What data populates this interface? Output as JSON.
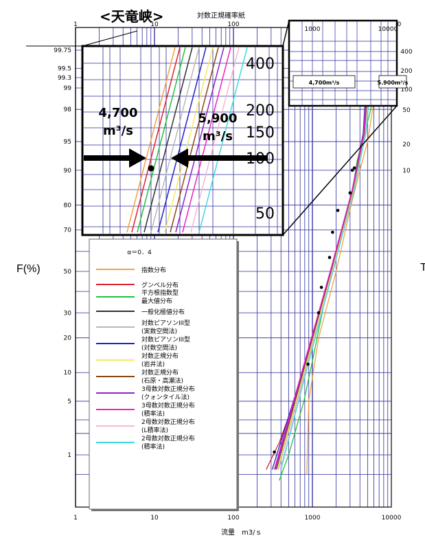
{
  "title": "<天竜峡>",
  "paper_label": "対数正規確率紙",
  "ylabel": "F(%)",
  "xlabel": "流量　m3/ｓ",
  "right_cut_char": "T",
  "chart_data": {
    "type": "line",
    "x_scale": "log",
    "xlim": [
      1,
      10000
    ],
    "x_ticks": [
      "1",
      "10",
      "100",
      "1000",
      "10000"
    ],
    "y_scale": "lognormal-probability",
    "ylim": [
      0.5,
      99.8
    ],
    "y_ticks": [
      "1",
      "5",
      "10",
      "20",
      "30",
      "50",
      "70",
      "80",
      "90",
      "95",
      "98",
      "99",
      "99.3",
      "99.5",
      "99.75"
    ],
    "legend_title": "α＝0．4",
    "series": [
      {
        "name": "指数分布",
        "color": "#f5a040",
        "points": [
          [
            850,
            0.5
          ],
          [
            900,
            5
          ],
          [
            1200,
            20
          ],
          [
            2000,
            50
          ],
          [
            3100,
            80
          ],
          [
            4000,
            90
          ],
          [
            5000,
            95
          ],
          [
            6400,
            99
          ],
          [
            7000,
            99.75
          ]
        ]
      },
      {
        "name": "グンベル分布",
        "color": "#e0202e",
        "points": [
          [
            260,
            0.6
          ],
          [
            380,
            1.5
          ],
          [
            800,
            10
          ],
          [
            1350,
            35
          ],
          [
            2100,
            60
          ],
          [
            3300,
            85
          ],
          [
            4300,
            95
          ],
          [
            5300,
            99
          ],
          [
            6000,
            99.75
          ]
        ]
      },
      {
        "name": "平方根指数型 最大値分布",
        "color": "#22c040",
        "points": [
          [
            380,
            0.4
          ],
          [
            500,
            1
          ],
          [
            780,
            5
          ],
          [
            1050,
            15
          ],
          [
            1700,
            50
          ],
          [
            3000,
            80
          ],
          [
            3700,
            92
          ],
          [
            5500,
            98
          ],
          [
            6500,
            99.75
          ]
        ]
      },
      {
        "name": "一般化極値分布",
        "color": "#303030",
        "points": [
          [
            330,
            0.6
          ],
          [
            700,
            8
          ],
          [
            1700,
            50
          ],
          [
            3200,
            85
          ],
          [
            4500,
            96
          ],
          [
            5300,
            99.75
          ]
        ]
      },
      {
        "name": "対数ピアソンIII型 (実数空間法)",
        "color": "#b8b8b8",
        "points": [
          [
            370,
            0.6
          ],
          [
            800,
            10
          ],
          [
            1800,
            50
          ],
          [
            3300,
            85
          ],
          [
            4800,
            96
          ],
          [
            5900,
            99.75
          ]
        ]
      },
      {
        "name": "対数ピアソンIII型 (対数空間法)",
        "color": "#2020c0",
        "points": [
          [
            310,
            0.6
          ],
          [
            680,
            8
          ],
          [
            1600,
            45
          ],
          [
            3200,
            85
          ],
          [
            4400,
            96
          ],
          [
            5100,
            99.75
          ]
        ]
      },
      {
        "name": "対数正規分布 (岩井法)",
        "color": "#f6e860",
        "points": [
          [
            360,
            0.6
          ],
          [
            780,
            10
          ],
          [
            1750,
            50
          ],
          [
            3300,
            85
          ],
          [
            4600,
            96
          ],
          [
            5600,
            99.75
          ]
        ]
      },
      {
        "name": "対数正規分布 (石原・高瀬法)",
        "color": "#8b4513",
        "points": [
          [
            350,
            0.6
          ],
          [
            760,
            10
          ],
          [
            1720,
            50
          ],
          [
            3250,
            85
          ],
          [
            4550,
            96
          ],
          [
            5500,
            99.75
          ]
        ]
      },
      {
        "name": "3母数対数正規分布 (クォンタイル法)",
        "color": "#9020c8",
        "points": [
          [
            340,
            0.6
          ],
          [
            740,
            10
          ],
          [
            1700,
            50
          ],
          [
            3200,
            85
          ],
          [
            4500,
            96
          ],
          [
            5400,
            99.75
          ]
        ]
      },
      {
        "name": "3母数対数正規分布 (積率法)",
        "color": "#f020c0",
        "points": [
          [
            330,
            0.6
          ],
          [
            730,
            10
          ],
          [
            1680,
            50
          ],
          [
            3200,
            85
          ],
          [
            4450,
            96
          ],
          [
            5300,
            99.75
          ]
        ]
      },
      {
        "name": "2母数対数正規分布 (L積率法)",
        "color": "#f4b8d8",
        "points": [
          [
            390,
            0.6
          ],
          [
            820,
            10
          ],
          [
            1800,
            50
          ],
          [
            3350,
            85
          ],
          [
            4700,
            96
          ],
          [
            5800,
            99.75
          ]
        ]
      },
      {
        "name": "2母数対数正規分布 (積率法)",
        "color": "#40d8e0",
        "points": [
          [
            400,
            0.6
          ],
          [
            830,
            10
          ],
          [
            1820,
            50
          ],
          [
            3400,
            85
          ],
          [
            4750,
            96
          ],
          [
            5900,
            99.75
          ]
        ]
      }
    ],
    "observed_points": [
      [
        330,
        1.1
      ],
      [
        880,
        12
      ],
      [
        1200,
        30
      ],
      [
        1300,
        42
      ],
      [
        1650,
        57
      ],
      [
        1800,
        69
      ],
      [
        2100,
        78
      ],
      [
        3000,
        84
      ],
      [
        3200,
        90
      ],
      [
        3400,
        90.5
      ]
    ],
    "inset": {
      "annotation_left": {
        "value": "4,700",
        "unit": "m³/s"
      },
      "annotation_right": {
        "value": "5,900",
        "unit": "m³/s"
      },
      "y_ticks": [
        "400",
        "200",
        "150",
        "100",
        "50"
      ]
    },
    "small_inset": {
      "label_left": "4,700m³/s",
      "label_right": "5.900m³/s",
      "x_ticks": [
        "1000",
        "10000"
      ],
      "y_ticks": [
        "400",
        "200",
        "100",
        "50",
        "20",
        "10"
      ]
    },
    "grid": true
  }
}
